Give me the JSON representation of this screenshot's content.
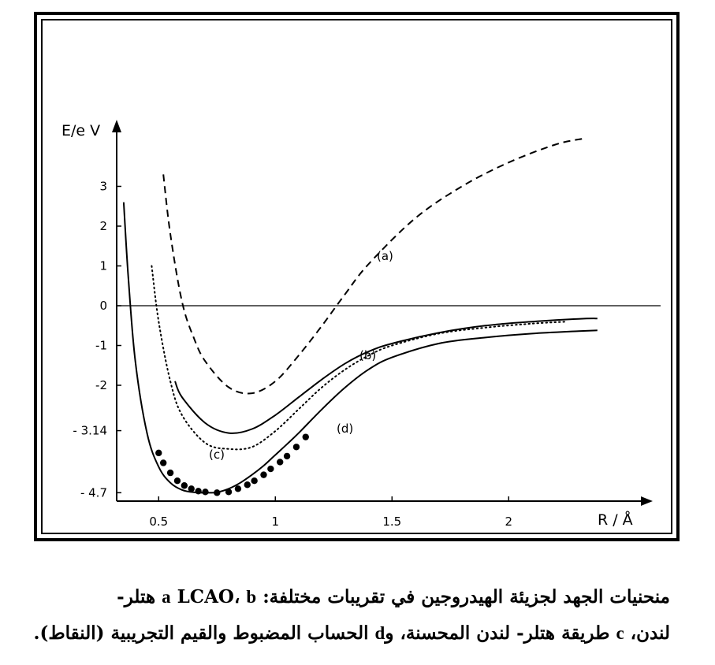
{
  "chart_data": {
    "type": "line",
    "ylabel": "E/e V",
    "xlabel": "R / Å",
    "xlim": [
      0.32,
      2.6
    ],
    "ylim": [
      -5.0,
      4.5
    ],
    "x_ticks": [
      {
        "value": 0.5,
        "label": "0.5"
      },
      {
        "value": 1,
        "label": "1"
      },
      {
        "value": 1.5,
        "label": "1.5"
      },
      {
        "value": 2,
        "label": "2"
      }
    ],
    "y_ticks": [
      {
        "value": 3,
        "label": "3"
      },
      {
        "value": 2,
        "label": "2"
      },
      {
        "value": 1,
        "label": "1"
      },
      {
        "value": 0,
        "label": "0"
      },
      {
        "value": -1,
        "label": "-1"
      },
      {
        "value": -2,
        "label": "-2"
      },
      {
        "value": -3.14,
        "label": "- 3.14"
      },
      {
        "value": -4.7,
        "label": "- 4.7"
      }
    ],
    "grid": false,
    "series": [
      {
        "name": "(a)",
        "style": "dashed",
        "x": [
          0.52,
          0.55,
          0.6,
          0.65,
          0.7,
          0.8,
          0.9,
          1.0,
          1.1,
          1.2,
          1.3,
          1.4,
          1.6,
          1.8,
          2.0,
          2.2,
          2.32
        ],
        "y": [
          3.3,
          1.8,
          0.1,
          -0.8,
          -1.4,
          -2.05,
          -2.2,
          -1.9,
          -1.25,
          -0.5,
          0.3,
          1.05,
          2.2,
          3.0,
          3.6,
          4.05,
          4.2
        ]
      },
      {
        "name": "(b)",
        "style": "solid",
        "x": [
          0.57,
          0.6,
          0.7,
          0.8,
          0.9,
          1.0,
          1.1,
          1.2,
          1.3,
          1.4,
          1.5,
          1.7,
          1.9,
          2.1,
          2.3,
          2.38
        ],
        "y": [
          -1.9,
          -2.3,
          -2.95,
          -3.2,
          -3.1,
          -2.75,
          -2.3,
          -1.85,
          -1.45,
          -1.15,
          -0.95,
          -0.68,
          -0.5,
          -0.4,
          -0.33,
          -0.32
        ]
      },
      {
        "name": "(c)",
        "style": "dotted",
        "x": [
          0.47,
          0.5,
          0.55,
          0.6,
          0.7,
          0.8,
          0.9,
          1.0,
          1.1,
          1.2,
          1.3,
          1.4,
          1.5,
          1.7,
          1.9,
          2.1,
          2.25
        ],
        "y": [
          1.0,
          -0.4,
          -1.9,
          -2.75,
          -3.45,
          -3.6,
          -3.55,
          -3.15,
          -2.6,
          -2.05,
          -1.6,
          -1.25,
          -1.0,
          -0.7,
          -0.55,
          -0.45,
          -0.4
        ]
      },
      {
        "name": "(d)",
        "style": "solid",
        "x": [
          0.35,
          0.37,
          0.4,
          0.45,
          0.5,
          0.55,
          0.6,
          0.65,
          0.7,
          0.75,
          0.8,
          0.85,
          0.9,
          0.95,
          1.0,
          1.05,
          1.1,
          1.2,
          1.3,
          1.4,
          1.5,
          1.7,
          1.9,
          2.1,
          2.3,
          2.38
        ],
        "y": [
          2.6,
          0.7,
          -1.4,
          -3.2,
          -4.05,
          -4.45,
          -4.63,
          -4.69,
          -4.7,
          -4.69,
          -4.6,
          -4.45,
          -4.25,
          -4.02,
          -3.75,
          -3.48,
          -3.2,
          -2.6,
          -2.05,
          -1.6,
          -1.3,
          -0.95,
          -0.8,
          -0.7,
          -0.64,
          -0.62
        ]
      },
      {
        "name": "experimental",
        "style": "points",
        "x": [
          0.5,
          0.52,
          0.55,
          0.58,
          0.61,
          0.64,
          0.67,
          0.7,
          0.75,
          0.8,
          0.84,
          0.88,
          0.91,
          0.95,
          0.98,
          1.02,
          1.05,
          1.09,
          1.13
        ],
        "y": [
          -3.7,
          -3.95,
          -4.2,
          -4.4,
          -4.52,
          -4.6,
          -4.66,
          -4.68,
          -4.7,
          -4.68,
          -4.6,
          -4.5,
          -4.4,
          -4.25,
          -4.1,
          -3.93,
          -3.78,
          -3.55,
          -3.3
        ]
      }
    ]
  },
  "caption": {
    "line1_part1": "منحنيات الجهد لجزيئة الهيدروجين في تقريبات مختلفة: ",
    "line1_a": "a",
    "line1_part2": " LCAO، ",
    "line1_b": "b",
    "line1_part3": " هتلر-",
    "line2_part1": "لندن، ",
    "line2_c": "c",
    "line2_part2": " طريقة هتلر- لندن المحسنة، و",
    "line2_d": "d",
    "line2_part3": " الحساب المضبوط والقيم التجريبية (النقاط)."
  }
}
